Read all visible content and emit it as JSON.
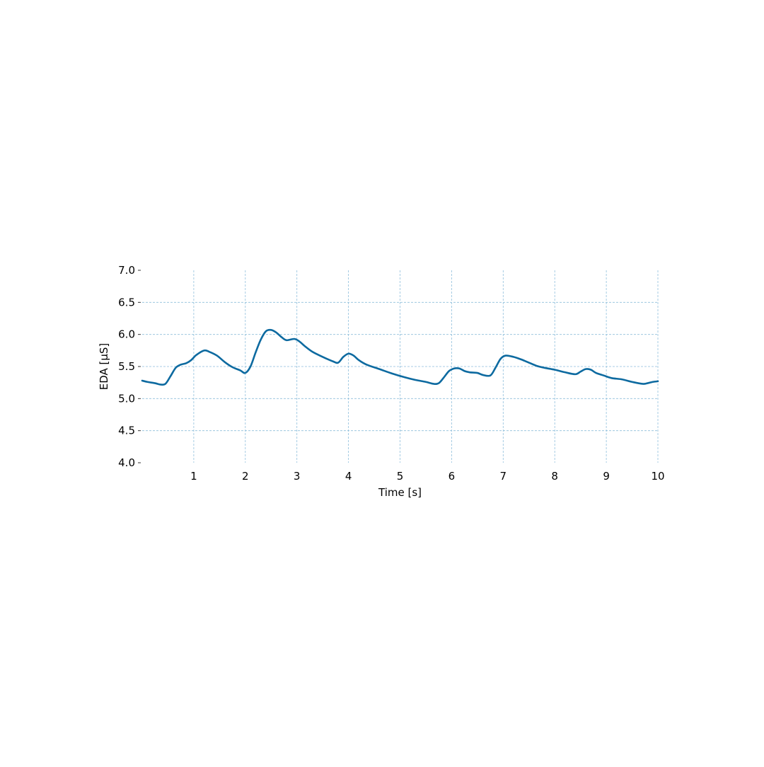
{
  "chart_data": {
    "type": "line",
    "title": "",
    "xlabel": "Time [s]",
    "ylabel": "EDA [μS]",
    "xlim": [
      0,
      10
    ],
    "ylim": [
      4.0,
      7.0
    ],
    "x_ticks": [
      1,
      2,
      3,
      4,
      5,
      6,
      7,
      8,
      9,
      10
    ],
    "x_tick_labels": [
      "1",
      "2",
      "3",
      "4",
      "5",
      "6",
      "7",
      "8",
      "9",
      "10"
    ],
    "y_ticks": [
      4.0,
      4.5,
      5.0,
      5.5,
      6.0,
      6.5,
      7.0
    ],
    "y_tick_labels": [
      "4.0",
      "4.5",
      "5.0",
      "5.5",
      "6.0",
      "6.5",
      "7.0"
    ],
    "grid": true,
    "legend": "none",
    "colors": {
      "line": "#0d6aa0",
      "grid": "#8fbfdc"
    },
    "series": [
      {
        "x": [
          0.0,
          0.1,
          0.25,
          0.35,
          0.45,
          0.55,
          0.65,
          0.75,
          0.85,
          0.95,
          1.05,
          1.2,
          1.3,
          1.45,
          1.6,
          1.75,
          1.9,
          2.0,
          2.1,
          2.2,
          2.3,
          2.4,
          2.5,
          2.6,
          2.7,
          2.8,
          2.95,
          3.05,
          3.15,
          3.3,
          3.5,
          3.7,
          3.8,
          3.9,
          4.0,
          4.1,
          4.2,
          4.35,
          4.6,
          4.85,
          5.1,
          5.3,
          5.5,
          5.65,
          5.75,
          5.85,
          5.95,
          6.05,
          6.15,
          6.25,
          6.35,
          6.5,
          6.6,
          6.75,
          6.85,
          6.95,
          7.05,
          7.2,
          7.35,
          7.5,
          7.65,
          7.8,
          8.0,
          8.2,
          8.4,
          8.5,
          8.6,
          8.7,
          8.8,
          8.95,
          9.1,
          9.3,
          9.5,
          9.7,
          9.8,
          9.9,
          10.0
        ],
        "y": [
          5.28,
          5.26,
          5.24,
          5.22,
          5.23,
          5.35,
          5.48,
          5.53,
          5.55,
          5.6,
          5.68,
          5.75,
          5.73,
          5.67,
          5.57,
          5.49,
          5.44,
          5.4,
          5.5,
          5.72,
          5.92,
          6.05,
          6.07,
          6.03,
          5.96,
          5.91,
          5.93,
          5.89,
          5.82,
          5.73,
          5.65,
          5.58,
          5.56,
          5.65,
          5.7,
          5.67,
          5.6,
          5.53,
          5.46,
          5.39,
          5.33,
          5.29,
          5.26,
          5.23,
          5.24,
          5.33,
          5.43,
          5.47,
          5.47,
          5.43,
          5.41,
          5.4,
          5.37,
          5.36,
          5.48,
          5.62,
          5.67,
          5.65,
          5.61,
          5.56,
          5.51,
          5.48,
          5.45,
          5.41,
          5.38,
          5.42,
          5.46,
          5.45,
          5.4,
          5.36,
          5.32,
          5.3,
          5.26,
          5.23,
          5.24,
          5.26,
          5.27
        ]
      }
    ]
  }
}
